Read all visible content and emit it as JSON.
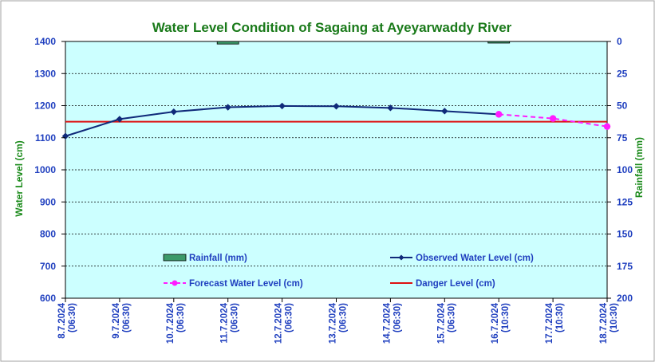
{
  "chart_data": {
    "type": "line",
    "title": "Water Level Condition of Sagaing at Ayeyarwaddy River",
    "ylabel": "Water Level (cm)",
    "y2label": "Rainfall (mm)",
    "ylim": [
      600,
      1400
    ],
    "yticks": [
      600,
      700,
      800,
      900,
      1000,
      1100,
      1200,
      1300,
      1400
    ],
    "y2lim": [
      0,
      200
    ],
    "y2ticks": [
      0,
      25,
      50,
      75,
      100,
      125,
      150,
      175,
      200
    ],
    "y2_inverted": true,
    "grid": "horizontal dashed",
    "categories": [
      {
        "date": "8.7.2024",
        "time": "(06:30)"
      },
      {
        "date": "9.7.2024",
        "time": "(06:30)"
      },
      {
        "date": "10.7.2024",
        "time": "(06:30)"
      },
      {
        "date": "11.7.2024",
        "time": "(06:30)"
      },
      {
        "date": "12.7.2024",
        "time": "(06:30)"
      },
      {
        "date": "13.7.2024",
        "time": "(06:30)"
      },
      {
        "date": "14.7.2024",
        "time": "(06:30)"
      },
      {
        "date": "15.7.2024",
        "time": "(06:30)"
      },
      {
        "date": "16.7.2024",
        "time": "(10:30)"
      },
      {
        "date": "17.7.2024",
        "time": "(10:30)"
      },
      {
        "date": "18.7.2024",
        "time": "(10:30)"
      }
    ],
    "series": [
      {
        "name": "Rainfall (mm)",
        "kind": "bar",
        "axis": "right",
        "color": "#3c9a6a",
        "values": [
          0,
          0,
          0,
          2,
          0,
          0,
          0,
          0,
          0.5,
          0,
          0
        ]
      },
      {
        "name": "Observed Water Level (cm)",
        "kind": "line",
        "axis": "left",
        "color": "#102a7a",
        "marker": "diamond",
        "values": [
          1105,
          1158,
          1181,
          1195,
          1199,
          1198,
          1193,
          1183,
          1173,
          null,
          null
        ]
      },
      {
        "name": "Forecast Water Level (cm)",
        "kind": "line",
        "axis": "left",
        "color": "#ff1cff",
        "dash": true,
        "marker": "circle",
        "values": [
          null,
          null,
          null,
          null,
          null,
          null,
          null,
          null,
          1173,
          1160,
          1135
        ]
      },
      {
        "name": "Danger Level (cm)",
        "kind": "line",
        "axis": "left",
        "color": "#dd1111",
        "values": [
          1150,
          1150,
          1150,
          1150,
          1150,
          1150,
          1150,
          1150,
          1150,
          1150,
          1150
        ]
      }
    ],
    "legend": {
      "placement": "bottom-inside",
      "order": [
        0,
        1,
        2,
        3
      ]
    },
    "colors": {
      "plot_bg": "#ccffff",
      "title": "#1a7a1a",
      "ticks": "#1f3fbf",
      "axis_titles": "#1a8a1a"
    }
  }
}
